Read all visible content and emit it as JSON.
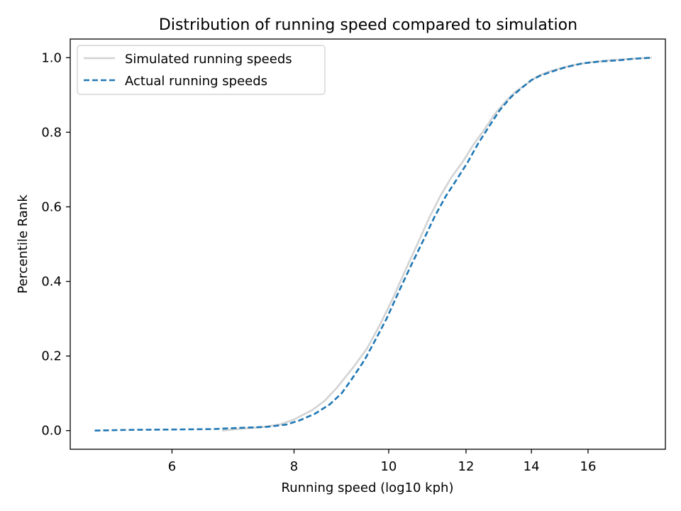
{
  "chart_data": {
    "type": "line",
    "title": "Distribution of running speed compared to simulation",
    "xlabel": "Running speed (log10 kph)",
    "ylabel": "Percentile Rank",
    "xscale": "log",
    "xlim": [
      4.72,
      19.2
    ],
    "ylim": [
      -0.05,
      1.05
    ],
    "xticks": [
      6,
      8,
      10,
      12,
      14,
      16
    ],
    "xtick_labels": [
      "6",
      "8",
      "10",
      "12",
      "14",
      "16"
    ],
    "yticks": [
      0.0,
      0.2,
      0.4,
      0.6,
      0.8,
      1.0
    ],
    "ytick_labels": [
      "0.0",
      "0.2",
      "0.4",
      "0.6",
      "0.8",
      "1.0"
    ],
    "grid": false,
    "legend_position": "upper-left",
    "series": [
      {
        "name": "Simulated running speeds",
        "color": "#d3d3d3",
        "style": "solid",
        "points": [
          [
            6.75,
            0.0
          ],
          [
            7.0,
            0.004
          ],
          [
            7.4,
            0.009
          ],
          [
            7.75,
            0.017
          ],
          [
            8.0,
            0.03
          ],
          [
            8.35,
            0.055
          ],
          [
            8.6,
            0.08
          ],
          [
            8.85,
            0.115
          ],
          [
            9.2,
            0.17
          ],
          [
            9.5,
            0.22
          ],
          [
            9.8,
            0.285
          ],
          [
            10.1,
            0.355
          ],
          [
            10.4,
            0.43
          ],
          [
            10.7,
            0.5
          ],
          [
            11.0,
            0.57
          ],
          [
            11.3,
            0.63
          ],
          [
            11.6,
            0.68
          ],
          [
            11.9,
            0.72
          ],
          [
            12.2,
            0.765
          ],
          [
            12.55,
            0.81
          ],
          [
            12.85,
            0.85
          ],
          [
            13.2,
            0.885
          ],
          [
            13.5,
            0.91
          ],
          [
            13.85,
            0.93
          ],
          [
            14.2,
            0.95
          ],
          [
            14.6,
            0.963
          ],
          [
            15.0,
            0.972
          ],
          [
            15.5,
            0.981
          ],
          [
            16.0,
            0.987
          ],
          [
            17.0,
            0.994
          ],
          [
            18.0,
            0.998
          ],
          [
            18.6,
            1.0
          ]
        ]
      },
      {
        "name": "Actual running speeds",
        "color": "#1f77b4",
        "style": "dashed",
        "points": [
          [
            5.0,
            0.0
          ],
          [
            5.4,
            0.002
          ],
          [
            6.0,
            0.003
          ],
          [
            6.6,
            0.004
          ],
          [
            7.0,
            0.007
          ],
          [
            7.5,
            0.01
          ],
          [
            7.85,
            0.016
          ],
          [
            8.1,
            0.027
          ],
          [
            8.4,
            0.045
          ],
          [
            8.7,
            0.07
          ],
          [
            8.95,
            0.1
          ],
          [
            9.15,
            0.135
          ],
          [
            9.45,
            0.19
          ],
          [
            9.7,
            0.245
          ],
          [
            9.95,
            0.3
          ],
          [
            10.25,
            0.375
          ],
          [
            10.55,
            0.445
          ],
          [
            10.85,
            0.51
          ],
          [
            11.15,
            0.575
          ],
          [
            11.45,
            0.63
          ],
          [
            11.75,
            0.675
          ],
          [
            12.05,
            0.72
          ],
          [
            12.35,
            0.77
          ],
          [
            12.7,
            0.82
          ],
          [
            13.0,
            0.86
          ],
          [
            13.35,
            0.895
          ],
          [
            13.7,
            0.92
          ],
          [
            14.0,
            0.94
          ],
          [
            14.3,
            0.952
          ],
          [
            14.7,
            0.963
          ],
          [
            15.2,
            0.975
          ],
          [
            15.8,
            0.985
          ],
          [
            16.5,
            0.99
          ],
          [
            17.2,
            0.993
          ],
          [
            17.8,
            0.997
          ],
          [
            18.6,
            1.0
          ]
        ]
      }
    ]
  }
}
